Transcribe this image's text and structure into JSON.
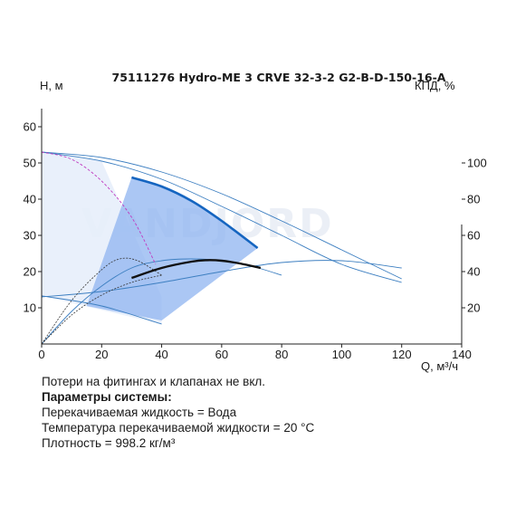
{
  "chart_data": {
    "type": "line",
    "title": "75111276 Hydro-ME 3 CRVE 32-3-2 G2-B-D-150-16-A",
    "ylabel": "H, м",
    "y2label": "КПД, %",
    "xlabel": "Q, м³/ч",
    "xlim": [
      0,
      140
    ],
    "ylim": [
      0,
      65
    ],
    "y2lim": [
      0,
      130
    ],
    "x_ticks": [
      "0",
      "20",
      "40",
      "60",
      "80",
      "100",
      "120",
      "140"
    ],
    "y_ticks": [
      "10",
      "20",
      "30",
      "40",
      "50",
      "60"
    ],
    "y2_ticks": [
      "20",
      "40",
      "60",
      "80",
      "100"
    ],
    "watermark": "VANDJORD",
    "series": [
      {
        "role": "max-head-curve",
        "axis": "H",
        "x": [
          0,
          20,
          40,
          60,
          80,
          100,
          120
        ],
        "y": [
          53,
          51.5,
          47.5,
          41.5,
          34,
          26,
          18
        ]
      },
      {
        "role": "head-curve-2",
        "axis": "H",
        "x": [
          0,
          20,
          40,
          60,
          80,
          100,
          120
        ],
        "y": [
          53,
          50.5,
          45.5,
          38,
          30,
          22,
          17
        ]
      },
      {
        "role": "system-curve",
        "axis": "H",
        "x": [
          0,
          20,
          40,
          60,
          80,
          100,
          120
        ],
        "y": [
          13,
          14.5,
          17,
          20,
          22.5,
          23,
          21
        ]
      },
      {
        "role": "operating-head-curve",
        "axis": "H",
        "x": [
          30,
          40,
          50,
          60,
          72
        ],
        "y": [
          46,
          43.5,
          39.5,
          34,
          26.5
        ]
      },
      {
        "role": "min-head-curve",
        "axis": "H",
        "x": [
          0,
          20,
          40
        ],
        "y": [
          13.3,
          10.5,
          5.5
        ]
      },
      {
        "role": "efficiency-curve",
        "axis": "ETA",
        "x": [
          30,
          40,
          50,
          55,
          60,
          66,
          73
        ],
        "y": [
          36.5,
          42,
          45.5,
          46.3,
          46,
          44.5,
          42
        ]
      },
      {
        "role": "efficiency-curve-2",
        "axis": "H",
        "x": [
          0,
          10,
          20,
          30,
          40,
          50,
          60,
          70,
          80
        ],
        "y": [
          0,
          9,
          16,
          21,
          23,
          23.5,
          23,
          21.5,
          19
        ]
      },
      {
        "role": "power-curve-1",
        "axis": "H",
        "x": [
          0,
          10,
          20,
          26,
          32,
          40
        ],
        "y": [
          0,
          12,
          20.5,
          23.5,
          23,
          19
        ]
      },
      {
        "role": "power-curve-2",
        "axis": "H",
        "x": [
          0,
          10,
          20,
          30,
          40
        ],
        "y": [
          0,
          8,
          13.5,
          17,
          19
        ]
      },
      {
        "role": "npsh-curve",
        "axis": "H",
        "x": [
          0,
          10,
          20,
          30,
          38
        ],
        "y": [
          53,
          51,
          45,
          35,
          22
        ]
      }
    ]
  },
  "notes": {
    "line1": "Потери на фитингах и клапанах не вкл.",
    "line2": "Параметры системы:",
    "line3": "Перекачиваемая жидкость = Вода",
    "line4": "Температура перекачиваемой жидкости = 20 °C",
    "line5": "Плотность = 998.2 кг/м³"
  },
  "colors": {
    "area_fill": "#8fb4f0",
    "operating_curve": "#1565c0",
    "thin_curve": "#3d7fc1",
    "efficiency": "#111111",
    "npsh": "#c03ac0",
    "plot_bg": "#e7eefb",
    "frame": "#222222"
  }
}
